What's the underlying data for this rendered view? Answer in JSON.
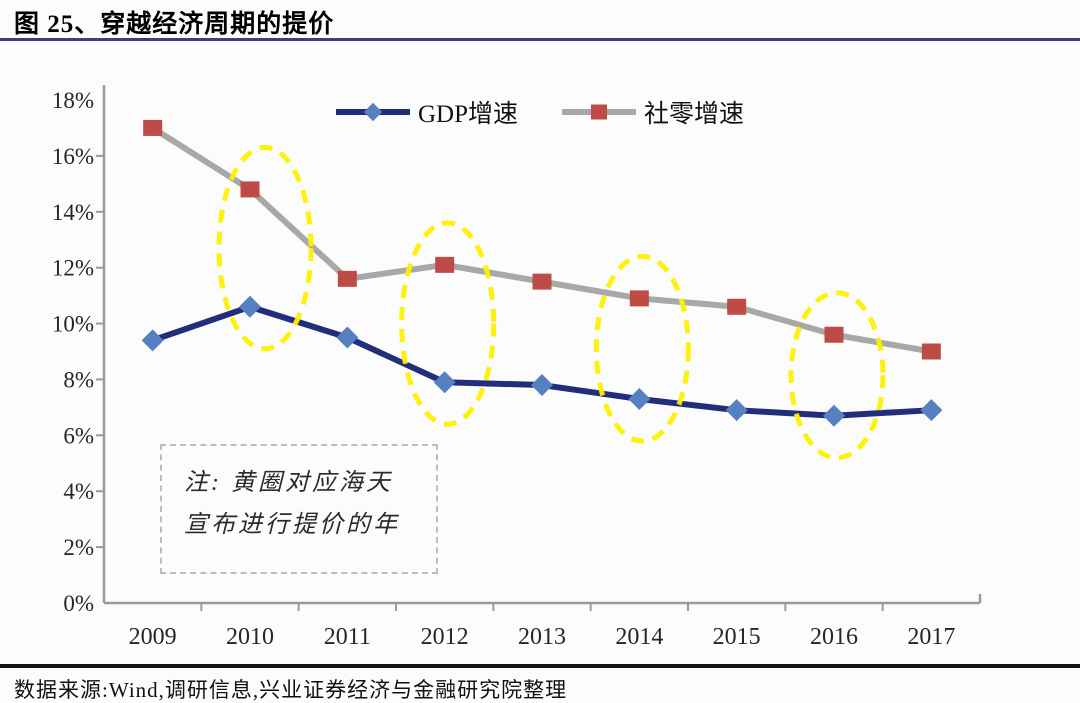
{
  "figure": {
    "title": "图 25、穿越经济周期的提价",
    "source": "数据来源:Wind,调研信息,兴业证券经济与金融研究院整理"
  },
  "note": {
    "line1": "注: 黄圈对应海天",
    "line2": "宣布进行提价的年"
  },
  "chart_data": {
    "type": "line",
    "categories": [
      "2009",
      "2010",
      "2011",
      "2012",
      "2013",
      "2014",
      "2015",
      "2016",
      "2017"
    ],
    "series": [
      {
        "name": "GDP增速",
        "values": [
          9.4,
          10.6,
          9.5,
          7.9,
          7.8,
          7.3,
          6.9,
          6.7,
          6.9
        ],
        "line_color": "#222d7c",
        "marker": "diamond",
        "marker_color": "#5580c1"
      },
      {
        "name": "社零增速",
        "values": [
          17.0,
          14.8,
          11.6,
          12.1,
          11.5,
          10.9,
          10.6,
          9.6,
          9.0
        ],
        "line_color": "#a8a8a8",
        "marker": "square",
        "marker_color": "#bf4b47"
      }
    ],
    "ylim": [
      0,
      18
    ],
    "y_tick_step": 2,
    "y_tick_format": "percent",
    "grid": false,
    "legend_position": "top-center",
    "highlight_years": [
      "2010",
      "2012",
      "2014",
      "2016"
    ],
    "highlight_color": "#fdf000",
    "axis_color": "#9a9a9a",
    "title_rule_color": "#41416f",
    "source_rule_color": "#141414"
  }
}
